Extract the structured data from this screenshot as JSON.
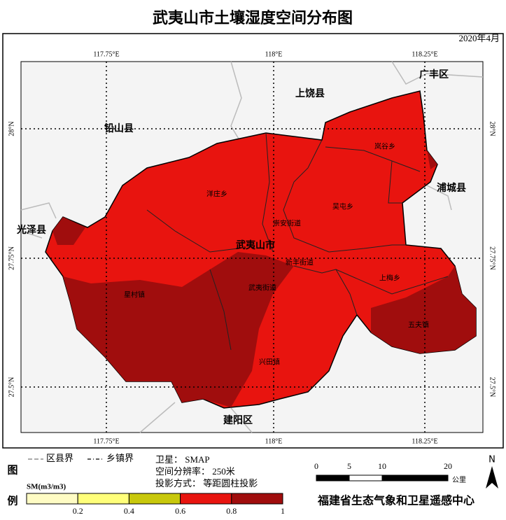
{
  "title": "武夷山市土壤湿度空间分布图",
  "date": "2020年4月",
  "map": {
    "lon_labels": [
      "117.75°E",
      "118°E",
      "118.25°E"
    ],
    "lat_labels": [
      "28°N",
      "27.75°N",
      "27.5°N"
    ],
    "regions": [
      "上饶县",
      "广丰区",
      "铅山县",
      "浦城县",
      "光泽县",
      "武夷山市",
      "建阳区"
    ],
    "towns": [
      "岚谷乡",
      "洋庄乡",
      "吴屯乡",
      "崇安街道",
      "新丰街道",
      "武夷街道",
      "星村镇",
      "上梅乡",
      "五夫镇",
      "兴田镇"
    ]
  },
  "legend": {
    "heading_top": "图",
    "heading_bottom": "例",
    "county_boundary": "区县界",
    "town_boundary": "乡镇界",
    "variable": "SM(m3/m3)",
    "lim": [
      0,
      1
    ],
    "ticks": [
      0.2,
      0.4,
      0.6,
      0.8,
      1
    ],
    "colors": [
      "#fffcc4",
      "#ffff7a",
      "#c8c80c",
      "#e8140f",
      "#a00d0d"
    ]
  },
  "info": [
    "卫星： SMAP",
    "空间分辨率： 250米",
    "投影方式： 等距圆柱投影"
  ],
  "scale_bar": {
    "ticks": [
      0,
      5,
      10,
      20
    ],
    "unit": "公里"
  },
  "north": "N",
  "credit": "福建省生态气象和卫星遥感中心"
}
